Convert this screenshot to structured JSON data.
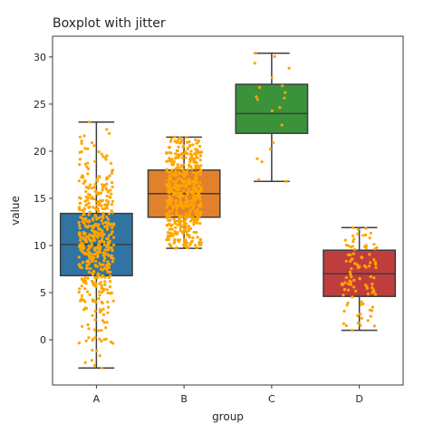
{
  "chart_data": {
    "type": "box",
    "title": "Boxplot with jitter",
    "xlabel": "group",
    "ylabel": "value",
    "categories": [
      "A",
      "B",
      "C",
      "D"
    ],
    "ylim": [
      -4.8,
      32.2
    ],
    "yticks": [
      0,
      5,
      10,
      15,
      20,
      25,
      30
    ],
    "grid": false,
    "legend": "none",
    "jitter_color": "#ffa500",
    "boxes": [
      {
        "group": "A",
        "color": "#3274a1",
        "whisker_low": -3.0,
        "q1": 6.8,
        "median": 10.1,
        "q3": 13.4,
        "whisker_high": 23.1,
        "n_points": 500
      },
      {
        "group": "B",
        "color": "#e1812c",
        "whisker_low": 9.7,
        "q1": 13.0,
        "median": 15.5,
        "q3": 18.0,
        "whisker_high": 21.5,
        "n_points": 500
      },
      {
        "group": "C",
        "color": "#3a923a",
        "whisker_low": 16.8,
        "q1": 21.9,
        "median": 24.0,
        "q3": 27.1,
        "whisker_high": 30.4,
        "n_points": 20
      },
      {
        "group": "D",
        "color": "#c03d3e",
        "whisker_low": 1.0,
        "q1": 4.6,
        "median": 7.0,
        "q3": 9.5,
        "whisker_high": 11.9,
        "n_points": 100
      }
    ]
  }
}
